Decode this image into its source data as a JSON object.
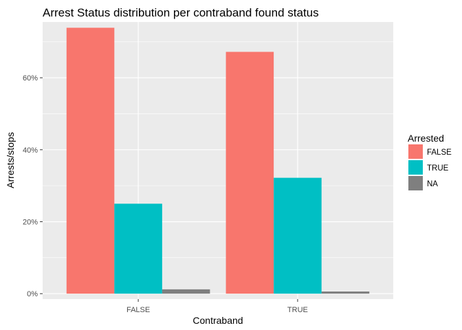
{
  "chart_data": {
    "type": "bar",
    "title": "Arrest Status distribution per contraband found status",
    "xlabel": "Contraband",
    "ylabel": "Arrests/stops",
    "categories": [
      "FALSE",
      "TRUE"
    ],
    "series": [
      {
        "name": "FALSE",
        "color": "#F8766D",
        "values": [
          0.739,
          0.672
        ]
      },
      {
        "name": "TRUE",
        "color": "#00BFC4",
        "values": [
          0.25,
          0.322
        ]
      },
      {
        "name": "NA",
        "color": "#7F7F7F",
        "values": [
          0.012,
          0.006
        ]
      }
    ],
    "ylim": [
      -0.015,
      0.755
    ],
    "yticks": [
      0,
      0.2,
      0.4,
      0.6
    ],
    "ytick_labels": [
      "0%",
      "20%",
      "40%",
      "60%"
    ],
    "legend": {
      "title": "Arrested",
      "position": "right"
    },
    "grid": true,
    "panel_background": "#EBEBEB",
    "grid_color": "#FFFFFF"
  }
}
